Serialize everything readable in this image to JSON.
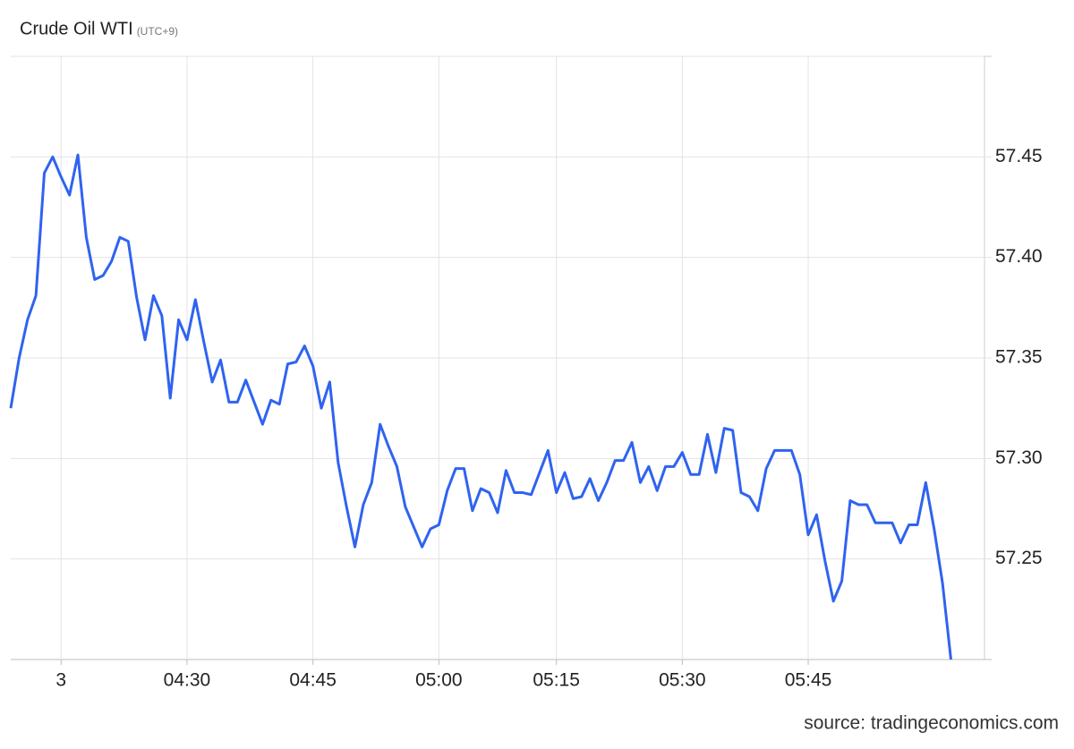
{
  "chart_data": {
    "type": "line",
    "title": "Crude Oil WTI",
    "subtitle": "(UTC+9)",
    "source": "source: tradingeconomics.com",
    "x": [
      9,
      10,
      11,
      12,
      13,
      14,
      15,
      16,
      17,
      18,
      19,
      20,
      21,
      22,
      23,
      24,
      25,
      26,
      27,
      28,
      29,
      30,
      31,
      32,
      33,
      34,
      35,
      36,
      37,
      38,
      39,
      40,
      41,
      42,
      43,
      44,
      45,
      46,
      47,
      48,
      49,
      50,
      51,
      52,
      53,
      54,
      55,
      56,
      57,
      58,
      59,
      60,
      61,
      62,
      63,
      64,
      65,
      66,
      67,
      68,
      69,
      70,
      71,
      72,
      73,
      74,
      75,
      76,
      77,
      78,
      79,
      80,
      81,
      82,
      83,
      84,
      85,
      86,
      87,
      88,
      89,
      90,
      91,
      92,
      93,
      94,
      95,
      96,
      97,
      98,
      99,
      100,
      101,
      102,
      103,
      104,
      105,
      106,
      107,
      108,
      109,
      110,
      111,
      112,
      113,
      114,
      115,
      116,
      117,
      118,
      119,
      120,
      121
    ],
    "series": [
      {
        "name": "Crude Oil WTI",
        "color": "#2f63f0",
        "values": [
          57.325,
          57.35,
          57.369,
          57.381,
          57.442,
          57.45,
          57.44,
          57.431,
          57.451,
          57.41,
          57.389,
          57.391,
          57.398,
          57.41,
          57.408,
          57.38,
          57.359,
          57.381,
          57.371,
          57.33,
          57.369,
          57.359,
          57.379,
          57.358,
          57.338,
          57.349,
          57.328,
          57.328,
          57.339,
          57.328,
          57.317,
          57.329,
          57.327,
          57.347,
          57.348,
          57.356,
          57.346,
          57.325,
          57.338,
          57.298,
          57.276,
          57.256,
          57.277,
          57.288,
          57.317,
          57.306,
          57.296,
          57.276,
          57.266,
          57.256,
          57.265,
          57.267,
          57.284,
          57.295,
          57.295,
          57.274,
          57.285,
          57.283,
          57.273,
          57.294,
          57.283,
          57.283,
          57.282,
          57.293,
          57.304,
          57.283,
          57.293,
          57.28,
          57.281,
          57.29,
          57.279,
          57.288,
          57.299,
          57.299,
          57.308,
          57.288,
          57.296,
          57.284,
          57.296,
          57.296,
          57.303,
          57.292,
          57.292,
          57.312,
          57.293,
          57.315,
          57.314,
          57.283,
          57.281,
          57.274,
          57.295,
          57.304,
          57.304,
          57.304,
          57.292,
          57.262,
          57.272,
          57.249,
          57.229,
          57.239,
          57.279,
          57.277,
          57.277,
          57.268,
          57.268,
          57.268,
          57.258,
          57.267,
          57.267,
          57.288,
          57.265,
          57.238,
          57.2
        ]
      }
    ],
    "xlim": [
      9,
      125
    ],
    "xticks": [
      {
        "value": 15,
        "label": "3"
      },
      {
        "value": 30,
        "label": "04:30"
      },
      {
        "value": 45,
        "label": "04:45"
      },
      {
        "value": 60,
        "label": "05:00"
      },
      {
        "value": 74,
        "label": "05:15"
      },
      {
        "value": 89,
        "label": "05:30"
      },
      {
        "value": 104,
        "label": "05:45"
      }
    ],
    "ylim": [
      57.2,
      57.5
    ],
    "yticks": [
      57.25,
      {
        "value": 57.3,
        "label": "57.30"
      },
      57.35,
      {
        "value": 57.4,
        "label": "57.40"
      },
      57.45
    ],
    "grid": true
  }
}
